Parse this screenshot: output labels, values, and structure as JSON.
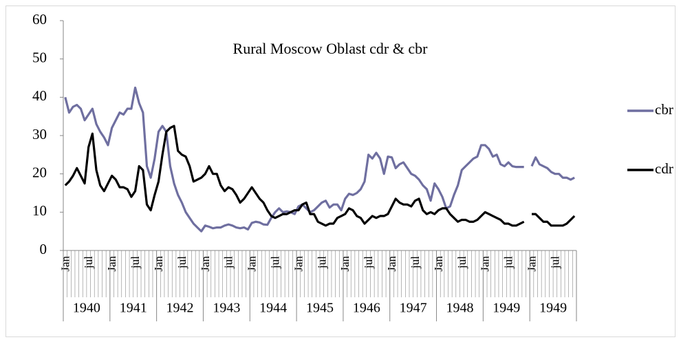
{
  "chart_data": {
    "type": "line",
    "title": "Rural Moscow Oblast cdr & cbr",
    "categories": [
      "Jan",
      null,
      null,
      null,
      null,
      null,
      "jul",
      null,
      null,
      null,
      null,
      null,
      "Jan",
      null,
      null,
      null,
      null,
      null,
      "jul",
      null,
      null,
      null,
      null,
      null,
      "Jan",
      null,
      null,
      null,
      null,
      null,
      "jul",
      null,
      null,
      null,
      null,
      null,
      "Jan",
      null,
      null,
      null,
      null,
      null,
      "jul",
      null,
      null,
      null,
      null,
      null,
      "Jan",
      null,
      null,
      null,
      null,
      null,
      "jul",
      null,
      null,
      null,
      null,
      null,
      "Jan",
      null,
      null,
      null,
      null,
      null,
      "jul",
      null,
      null,
      null,
      null,
      null,
      "Jan",
      null,
      null,
      null,
      null,
      null,
      "jul",
      null,
      null,
      null,
      null,
      null,
      "Jan",
      null,
      null,
      null,
      null,
      null,
      "jul",
      null,
      null,
      null,
      null,
      null,
      "Jan",
      null,
      null,
      null,
      null,
      null,
      "jul",
      null,
      null,
      null,
      null,
      null,
      "Jan",
      null,
      null,
      null,
      null,
      null,
      "jul",
      null,
      null,
      null,
      null,
      null,
      "Jan",
      null,
      null,
      null,
      null,
      null,
      "jul",
      null,
      null,
      null,
      null,
      null
    ],
    "year_groups": [
      "1940",
      "1941",
      "1942",
      "1943",
      "1944",
      "1945",
      "1946",
      "1947",
      "1948",
      "1949",
      "1949"
    ],
    "series": [
      {
        "name": "cbr",
        "color": "#6f6fa0",
        "values": [
          40,
          36,
          37.5,
          38,
          37,
          34,
          35.5,
          37,
          33,
          31,
          29.5,
          27.5,
          32,
          34,
          36,
          35.5,
          37,
          37,
          42.5,
          38.5,
          36,
          22,
          19,
          24,
          31,
          32.5,
          31,
          22,
          17.5,
          14.5,
          12.5,
          10,
          8.5,
          7,
          6,
          5,
          6.5,
          6.2,
          5.8,
          6,
          6,
          6.5,
          6.8,
          6.5,
          6,
          5.8,
          6,
          5.5,
          7.2,
          7.5,
          7.3,
          6.8,
          6.7,
          8.5,
          10,
          11,
          10,
          10.2,
          10,
          9.5,
          11.5,
          12,
          11,
          10,
          10.5,
          11.5,
          12.5,
          13,
          11.2,
          12,
          12,
          10.5,
          13.5,
          14.8,
          14.5,
          15,
          16,
          18,
          25,
          24,
          25.5,
          24,
          20,
          24.5,
          24.3,
          21.5,
          22.5,
          23,
          21.5,
          20,
          19.5,
          18.5,
          17,
          16,
          13,
          17.5,
          16,
          14,
          11,
          11.5,
          14.5,
          17,
          21,
          22,
          23,
          24,
          24.5,
          27.5,
          27.5,
          26.5,
          24.5,
          25,
          22.5,
          22,
          23,
          22,
          21.8,
          21.8,
          21.8,
          null,
          22,
          24.3,
          22.5,
          22,
          21.5,
          20.5,
          20,
          20,
          19,
          19,
          18.5,
          19
        ]
      },
      {
        "name": "cdr",
        "color": "#000000",
        "values": [
          17,
          18,
          19.5,
          21.5,
          19.5,
          17.5,
          27,
          30.5,
          21,
          17,
          15.5,
          17.5,
          19.5,
          18.5,
          16.5,
          16.5,
          16,
          14,
          15.5,
          22,
          21,
          12,
          10.5,
          14.5,
          18,
          25,
          31,
          32,
          32.5,
          26,
          25,
          24.5,
          22,
          18,
          18.5,
          19,
          20,
          22,
          20,
          20,
          17,
          15.5,
          16.5,
          16,
          14.5,
          12.5,
          13.5,
          15,
          16.5,
          15,
          13.5,
          12.5,
          10.5,
          9,
          8.5,
          9,
          9.5,
          9.5,
          10,
          10.5,
          10.5,
          12,
          12.5,
          9.5,
          9.5,
          7.5,
          7,
          6.5,
          7,
          7,
          8.5,
          9,
          9.5,
          11,
          10.5,
          9,
          8.5,
          7,
          8,
          9,
          8.5,
          9,
          9,
          9.5,
          11.5,
          13.5,
          12.5,
          12,
          12,
          11.5,
          13,
          13.5,
          10.5,
          9.5,
          10,
          9.5,
          10.5,
          11,
          11,
          9.5,
          8.5,
          7.5,
          8,
          8,
          7.5,
          7.5,
          8,
          9,
          10,
          9.5,
          9,
          8.5,
          8,
          7,
          7,
          6.5,
          6.5,
          7,
          7.5,
          null,
          9.5,
          9.5,
          8.5,
          7.5,
          7.5,
          6.5,
          6.5,
          6.5,
          6.5,
          7,
          8,
          9
        ]
      }
    ],
    "ylim": [
      0,
      60
    ],
    "yticks": [
      0,
      10,
      20,
      30,
      40,
      50,
      60
    ],
    "grid": false,
    "legend": "right"
  }
}
